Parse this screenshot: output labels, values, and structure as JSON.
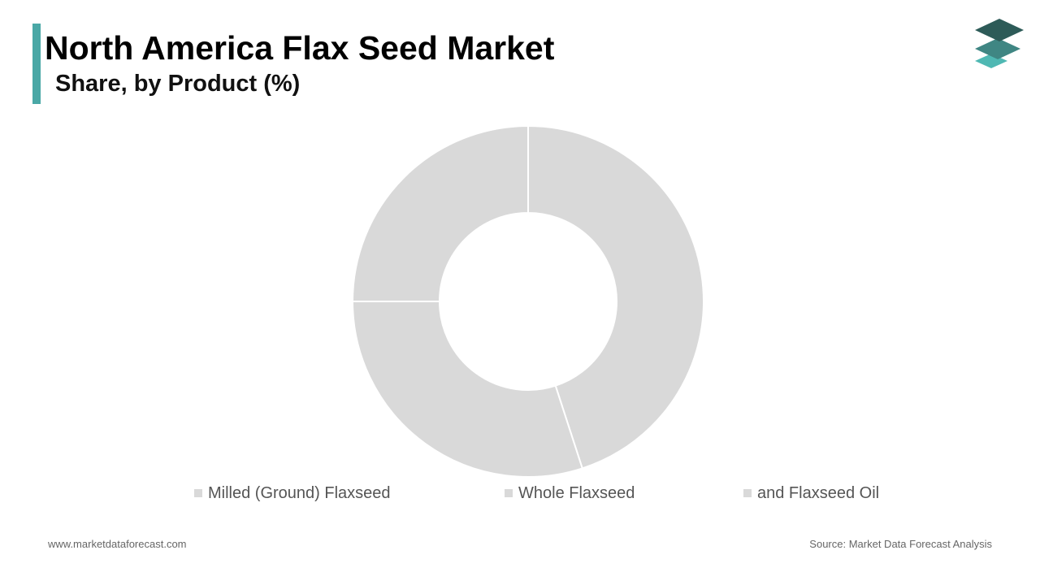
{
  "header": {
    "title": "North America Flax Seed Market",
    "subtitle": "Share, by Product (%)",
    "accent_color": "#4aa8a6"
  },
  "logo": {
    "icon": "stacked-layers-icon",
    "colors": [
      "#2d5b58",
      "#3f8683",
      "#4fb8b3"
    ]
  },
  "chart_data": {
    "type": "pie",
    "style": "donut",
    "title": "North America Flax Seed Market",
    "subtitle": "Share, by Product (%)",
    "categories": [
      "Milled (Ground) Flaxseed",
      "Whole Flaxseed",
      "and Flaxseed Oil"
    ],
    "values": [
      45,
      30,
      25
    ],
    "unit": "%",
    "colors": [
      "#d9d9d9",
      "#d9d9d9",
      "#d9d9d9"
    ],
    "start_angle": "12 o'clock",
    "direction": "clockwise",
    "legend_position": "bottom"
  },
  "footer": {
    "website": "www.marketdataforecast.com",
    "source": "Source: Market Data Forecast Analysis"
  }
}
